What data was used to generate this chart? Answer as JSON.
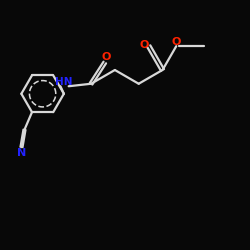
{
  "bg_color": "#080808",
  "bond_color": "#d8d8d8",
  "atom_colors": {
    "O": "#ff2200",
    "N_amine": "#2222ff",
    "N_nitrile": "#2222ff"
  },
  "bond_lw": 1.6,
  "font_size": 7.5
}
